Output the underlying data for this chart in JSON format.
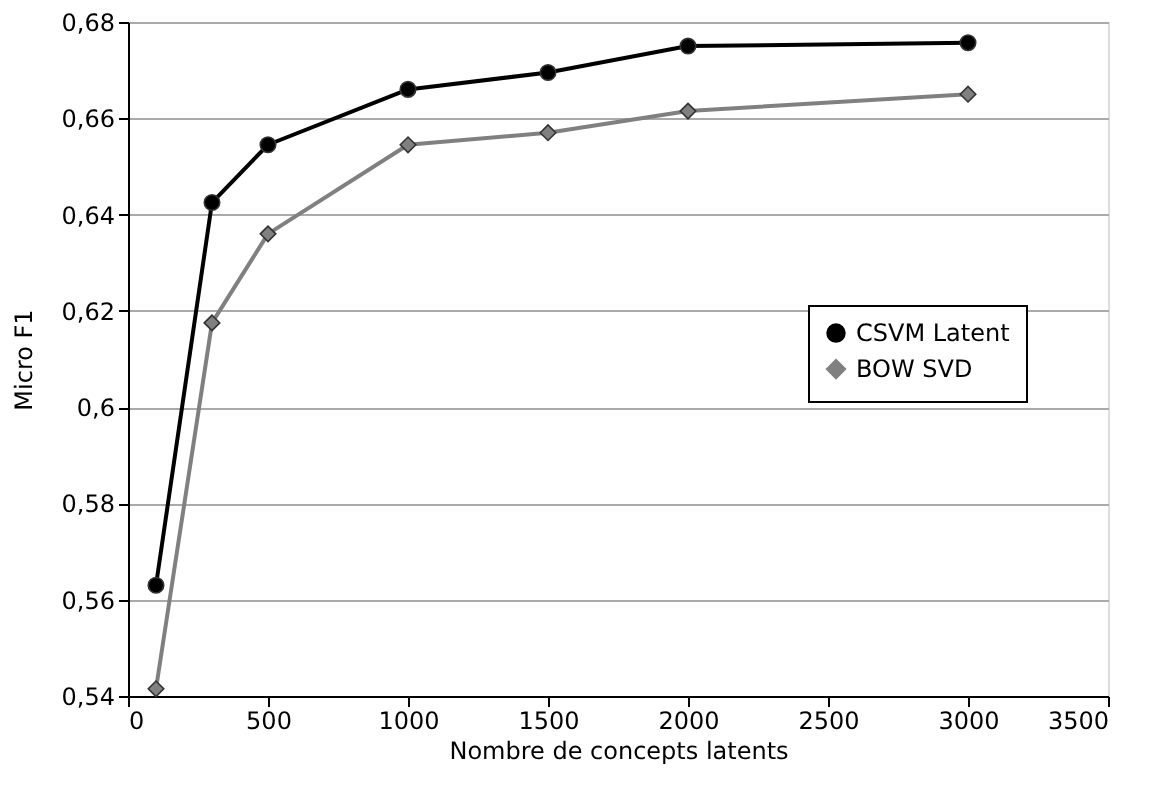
{
  "chart_data": {
    "type": "line",
    "xlabel": "Nombre de concepts latents",
    "ylabel": "Micro F1",
    "x": [
      100,
      300,
      500,
      1000,
      1500,
      2000,
      3000
    ],
    "series": [
      {
        "name": "CSVM Latent",
        "color": "#000000",
        "marker": "circle",
        "values": [
          0.563,
          0.6425,
          0.6545,
          0.666,
          0.6695,
          0.675,
          0.6757
        ]
      },
      {
        "name": "BOW SVD",
        "color": "#808080",
        "marker": "diamond",
        "values": [
          0.5415,
          0.6175,
          0.636,
          0.6545,
          0.657,
          0.6615,
          0.665
        ]
      }
    ],
    "xlim": [
      0,
      3500
    ],
    "xticks": [
      0,
      500,
      1000,
      1500,
      2000,
      2500,
      3000,
      3500
    ],
    "ylim": [
      0.54,
      0.68
    ],
    "yticks": [
      {
        "value": 0.54,
        "label": "0,54"
      },
      {
        "value": 0.56,
        "label": "0,56"
      },
      {
        "value": 0.58,
        "label": "0,58"
      },
      {
        "value": 0.6,
        "label": "0,6"
      },
      {
        "value": 0.62,
        "label": "0,62"
      },
      {
        "value": 0.64,
        "label": "0,64"
      },
      {
        "value": 0.66,
        "label": "0,66"
      },
      {
        "value": 0.68,
        "label": "0,68"
      }
    ],
    "grid": "y",
    "legend": "right",
    "line_style": "solid"
  }
}
